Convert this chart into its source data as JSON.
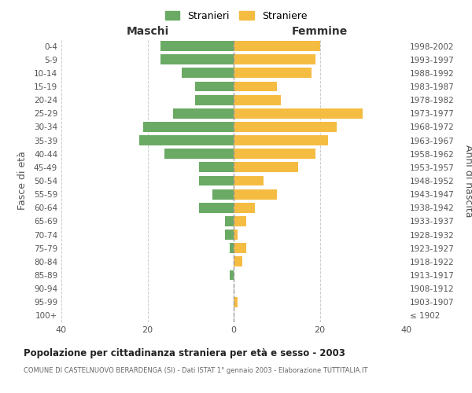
{
  "age_groups": [
    "100+",
    "95-99",
    "90-94",
    "85-89",
    "80-84",
    "75-79",
    "70-74",
    "65-69",
    "60-64",
    "55-59",
    "50-54",
    "45-49",
    "40-44",
    "35-39",
    "30-34",
    "25-29",
    "20-24",
    "15-19",
    "10-14",
    "5-9",
    "0-4"
  ],
  "birth_years": [
    "≤ 1902",
    "1903-1907",
    "1908-1912",
    "1913-1917",
    "1918-1922",
    "1923-1927",
    "1928-1932",
    "1933-1937",
    "1938-1942",
    "1943-1947",
    "1948-1952",
    "1953-1957",
    "1958-1962",
    "1963-1967",
    "1968-1972",
    "1973-1977",
    "1978-1982",
    "1983-1987",
    "1988-1992",
    "1993-1997",
    "1998-2002"
  ],
  "males": [
    0,
    0,
    0,
    1,
    0,
    1,
    2,
    2,
    8,
    5,
    8,
    8,
    16,
    22,
    21,
    14,
    9,
    9,
    12,
    17,
    17
  ],
  "females": [
    0,
    1,
    0,
    0,
    2,
    3,
    1,
    3,
    5,
    10,
    7,
    15,
    19,
    22,
    24,
    30,
    11,
    10,
    18,
    19,
    20
  ],
  "male_color": "#6aaa64",
  "female_color": "#f5bc42",
  "background_color": "#ffffff",
  "grid_color": "#cccccc",
  "title": "Popolazione per cittadinanza straniera per età e sesso - 2003",
  "subtitle": "COMUNE DI CASTELNUOVO BERARDENGA (SI) - Dati ISTAT 1° gennaio 2003 - Elaborazione TUTTITALIA.IT",
  "xlabel_left": "Maschi",
  "xlabel_right": "Femmine",
  "ylabel_left": "Fasce di età",
  "ylabel_right": "Anni di nascita",
  "legend_male": "Stranieri",
  "legend_female": "Straniere",
  "xlim": 40,
  "figsize": [
    6.0,
    5.0
  ],
  "dpi": 100
}
